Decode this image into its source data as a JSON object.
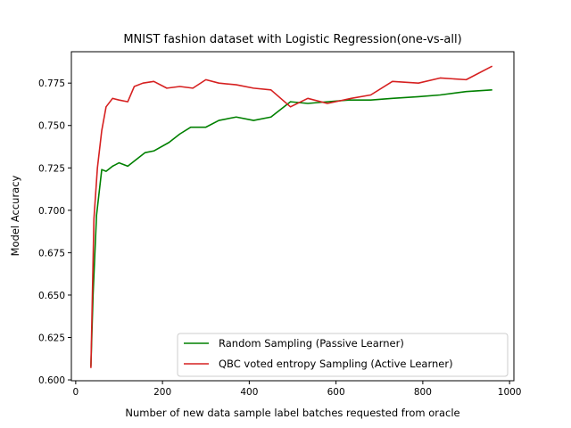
{
  "chart_data": {
    "type": "line",
    "title": "MNIST fashion dataset with Logistic Regression(one-vs-all)",
    "xlabel": "Number of new data sample label batches requested from oracle",
    "ylabel": "Model Accuracy",
    "xlim": [
      -10,
      1010
    ],
    "ylim": [
      0.5995,
      0.7935
    ],
    "xticks": [
      0,
      200,
      400,
      600,
      800,
      1000
    ],
    "xtick_labels": [
      "0",
      "200",
      "400",
      "600",
      "800",
      "1000"
    ],
    "yticks": [
      0.6,
      0.625,
      0.65,
      0.675,
      0.7,
      0.725,
      0.75,
      0.775
    ],
    "ytick_labels": [
      "0.600",
      "0.625",
      "0.650",
      "0.675",
      "0.700",
      "0.725",
      "0.750",
      "0.775"
    ],
    "grid": false,
    "legend_position": "bottom-right",
    "series": [
      {
        "name": "Random Sampling (Passive Learner)",
        "color": "#008000",
        "x": [
          35,
          40,
          48,
          60,
          70,
          85,
          100,
          120,
          135,
          160,
          180,
          215,
          240,
          265,
          300,
          330,
          370,
          410,
          450,
          495,
          535,
          580,
          630,
          680,
          730,
          790,
          840,
          900,
          960
        ],
        "y": [
          0.608,
          0.65,
          0.697,
          0.724,
          0.723,
          0.726,
          0.728,
          0.726,
          0.729,
          0.734,
          0.735,
          0.74,
          0.745,
          0.749,
          0.749,
          0.753,
          0.755,
          0.753,
          0.755,
          0.764,
          0.763,
          0.764,
          0.765,
          0.765,
          0.766,
          0.767,
          0.768,
          0.77,
          0.771
        ]
      },
      {
        "name": "QBC voted entropy Sampling (Active Learner)",
        "color": "#d62020",
        "x": [
          35,
          42,
          50,
          60,
          70,
          85,
          100,
          120,
          135,
          155,
          180,
          210,
          240,
          270,
          300,
          330,
          370,
          410,
          450,
          495,
          535,
          580,
          635,
          680,
          730,
          790,
          840,
          900,
          960
        ],
        "y": [
          0.607,
          0.695,
          0.725,
          0.747,
          0.761,
          0.766,
          0.765,
          0.764,
          0.773,
          0.775,
          0.776,
          0.772,
          0.773,
          0.772,
          0.777,
          0.775,
          0.774,
          0.772,
          0.771,
          0.761,
          0.766,
          0.763,
          0.766,
          0.768,
          0.776,
          0.775,
          0.778,
          0.777,
          0.785
        ]
      }
    ]
  }
}
